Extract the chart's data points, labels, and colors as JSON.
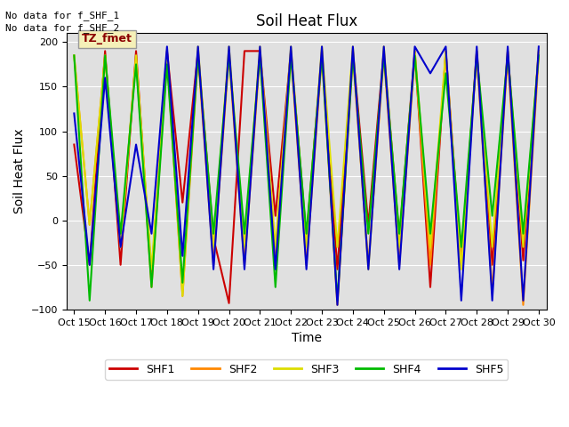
{
  "title": "Soil Heat Flux",
  "xlabel": "Time",
  "ylabel": "Soil Heat Flux",
  "annotations": [
    "No data for f_SHF_1",
    "No data for f_SHF_2"
  ],
  "legend_label": "TZ_fmet",
  "ylim": [
    -100,
    210
  ],
  "yticks": [
    -100,
    -50,
    0,
    50,
    100,
    150,
    200
  ],
  "x_labels": [
    "Oct 15",
    "Oct 16",
    "Oct 17",
    "Oct 18",
    "Oct 19",
    "Oct 20",
    "Oct 21",
    "Oct 22",
    "Oct 23",
    "Oct 24",
    "Oct 25",
    "Oct 26",
    "Oct 27",
    "Oct 28",
    "Oct 29",
    "Oct 30"
  ],
  "colors": {
    "SHF1": "#cc0000",
    "SHF2": "#ff8800",
    "SHF3": "#dddd00",
    "SHF4": "#00bb00",
    "SHF5": "#0000cc"
  },
  "SHF1": [
    85,
    -50,
    190,
    -50,
    190,
    -65,
    190,
    20,
    190,
    -20,
    -93,
    190,
    190,
    5,
    190,
    -20,
    190,
    -55,
    190,
    -5,
    190,
    -20,
    190,
    -75,
    190,
    -50,
    190,
    -50,
    190,
    -45,
    190
  ],
  "SHF2": [
    185,
    -5,
    185,
    -30,
    185,
    -75,
    185,
    -85,
    185,
    -50,
    185,
    -50,
    185,
    -50,
    185,
    -50,
    185,
    -95,
    185,
    -50,
    185,
    -50,
    185,
    -50,
    185,
    -50,
    185,
    -80,
    185,
    -95,
    185
  ],
  "SHF3": [
    185,
    -5,
    185,
    -30,
    185,
    -55,
    185,
    -85,
    195,
    -30,
    195,
    -30,
    195,
    -30,
    195,
    -30,
    195,
    -30,
    195,
    -55,
    195,
    -30,
    190,
    -30,
    190,
    -55,
    190,
    -30,
    190,
    -30,
    190
  ],
  "SHF4": [
    185,
    -90,
    185,
    -15,
    175,
    -75,
    175,
    -70,
    185,
    -15,
    185,
    -15,
    185,
    -75,
    185,
    -15,
    185,
    -90,
    185,
    -15,
    185,
    -15,
    185,
    -15,
    165,
    -30,
    185,
    5,
    185,
    -15,
    185
  ],
  "SHF5": [
    120,
    -50,
    160,
    -30,
    85,
    -15,
    195,
    -40,
    195,
    -55,
    195,
    -55,
    195,
    -55,
    195,
    -55,
    195,
    -95,
    195,
    -55,
    195,
    -55,
    195,
    165,
    195,
    -90,
    195,
    -90,
    195,
    -90,
    195
  ],
  "background_color": "#e0e0e0",
  "grid_color": "white",
  "linewidth": 1.5,
  "figsize": [
    6.4,
    4.8
  ],
  "dpi": 100
}
